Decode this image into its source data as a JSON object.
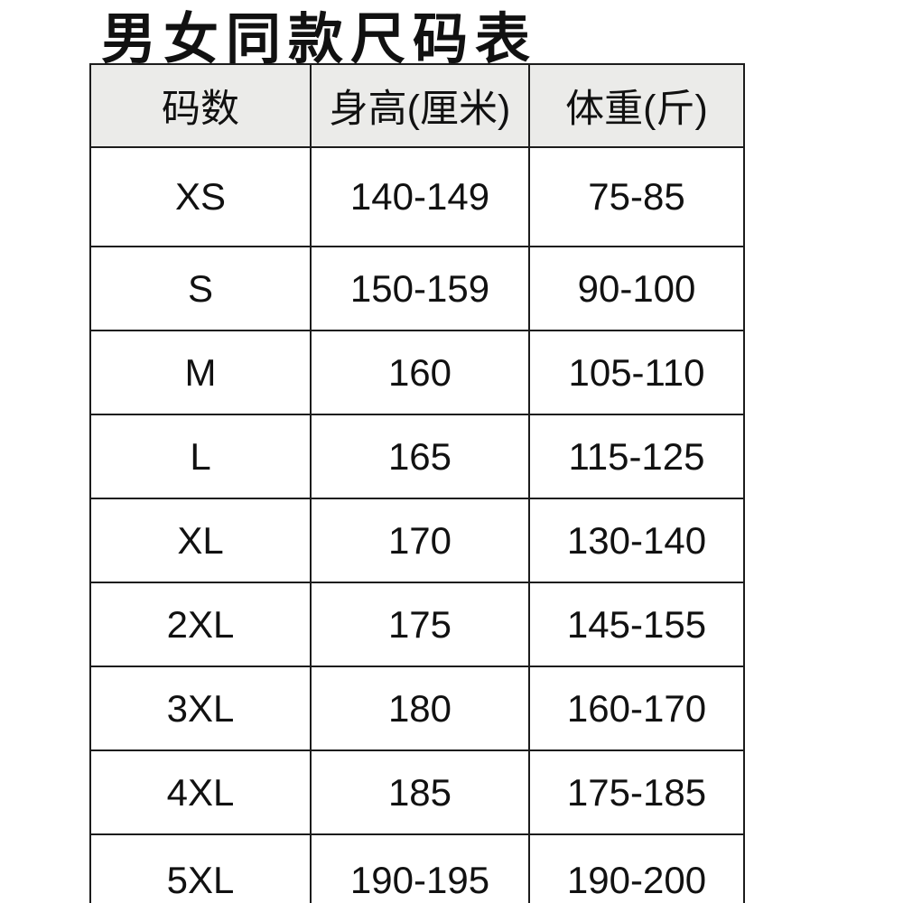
{
  "page": {
    "title": "男女同款尺码表"
  },
  "table": {
    "headers": [
      "码数",
      "身高(厘米)",
      "体重(斤)"
    ],
    "rows": [
      {
        "size": "XS",
        "height": "140-149",
        "weight": "75-85"
      },
      {
        "size": "S",
        "height": "150-159",
        "weight": "90-100"
      },
      {
        "size": "M",
        "height": "160",
        "weight": "105-110"
      },
      {
        "size": "L",
        "height": "165",
        "weight": "115-125"
      },
      {
        "size": "XL",
        "height": "170",
        "weight": "130-140"
      },
      {
        "size": "2XL",
        "height": "175",
        "weight": "145-155"
      },
      {
        "size": "3XL",
        "height": "180",
        "weight": "160-170"
      },
      {
        "size": "4XL",
        "height": "185",
        "weight": "175-185"
      },
      {
        "size": "5XL",
        "height": "190-195",
        "weight": "190-200"
      }
    ]
  },
  "colors": {
    "page_bg": "#ffffff",
    "header_bg": "#ebebe9",
    "border": "#1c1c1c",
    "text": "#111111"
  }
}
